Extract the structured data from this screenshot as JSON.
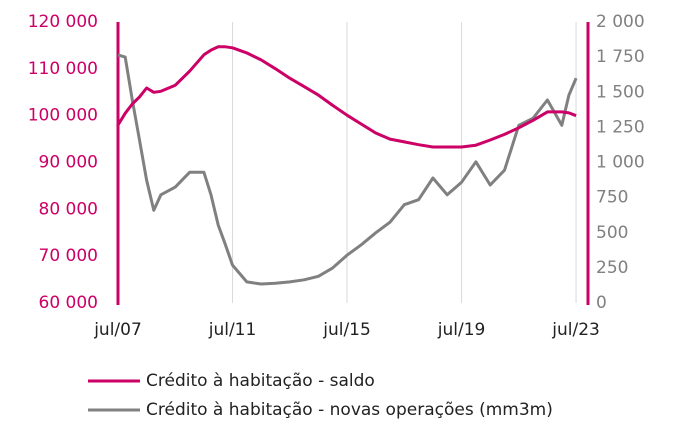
{
  "chart_data": {
    "type": "line",
    "x": [
      "2007-07",
      "2007-10",
      "2008-01",
      "2008-04",
      "2008-07",
      "2008-10",
      "2009-01",
      "2009-07",
      "2010-01",
      "2010-07",
      "2010-10",
      "2011-01",
      "2011-04",
      "2011-07",
      "2012-01",
      "2012-07",
      "2013-01",
      "2013-07",
      "2014-01",
      "2014-07",
      "2015-01",
      "2015-07",
      "2016-01",
      "2016-07",
      "2017-01",
      "2017-07",
      "2018-01",
      "2018-07",
      "2019-01",
      "2019-07",
      "2020-01",
      "2020-07",
      "2021-01",
      "2021-07",
      "2022-01",
      "2022-07",
      "2023-01",
      "2023-04",
      "2023-07"
    ],
    "series": [
      {
        "name": "Crédito à habitação - saldo",
        "color": "#cc0066",
        "values": [
          98000,
          100500,
          102500,
          104000,
          105900,
          105000,
          105200,
          106500,
          109500,
          113000,
          114000,
          114700,
          114700,
          114500,
          113400,
          111900,
          110000,
          108000,
          106200,
          104400,
          102200,
          100100,
          98200,
          96300,
          95000,
          94400,
          93800,
          93300,
          93300,
          93300,
          93700,
          94800,
          96000,
          97400,
          99000,
          100800,
          100800,
          100600,
          100000
        ]
      },
      {
        "name": "Crédito à habitação - novas operações (mm3m)",
        "color": "#808080",
        "axis": "y2",
        "values": [
          1765,
          1750,
          1445,
          1160,
          875,
          660,
          770,
          825,
          930,
          930,
          770,
          555,
          415,
          270,
          150,
          135,
          140,
          150,
          165,
          190,
          250,
          340,
          415,
          500,
          575,
          700,
          735,
          890,
          770,
          860,
          1005,
          840,
          945,
          1265,
          1315,
          1445,
          1265,
          1480,
          1600
        ]
      }
    ],
    "xlim": [
      "2007-07",
      "2023-12"
    ],
    "xticks": [
      {
        "value": "2007-07",
        "label": "jul/07"
      },
      {
        "value": "2011-07",
        "label": "jul/11"
      },
      {
        "value": "2015-07",
        "label": "jul/15"
      },
      {
        "value": "2019-07",
        "label": "jul/19"
      },
      {
        "value": "2023-07",
        "label": "jul/23"
      }
    ],
    "ylim": [
      60000,
      120000
    ],
    "yticks": [
      {
        "value": 60000,
        "label": "60 000"
      },
      {
        "value": 70000,
        "label": "70 000"
      },
      {
        "value": 80000,
        "label": "80 000"
      },
      {
        "value": 90000,
        "label": "90 000"
      },
      {
        "value": 100000,
        "label": "100 000"
      },
      {
        "value": 110000,
        "label": "110 000"
      },
      {
        "value": 120000,
        "label": "120 000"
      }
    ],
    "y2lim": [
      0,
      2000
    ],
    "y2ticks": [
      0,
      250,
      500,
      750,
      {
        "value": 1000,
        "label": "1 000"
      },
      {
        "value": 1250,
        "label": "1 250"
      },
      {
        "value": 1500,
        "label": "1 500"
      },
      {
        "value": 1750,
        "label": "1 750"
      },
      {
        "value": 2000,
        "label": "2 000"
      }
    ],
    "grid": true,
    "legend": "bottom"
  }
}
